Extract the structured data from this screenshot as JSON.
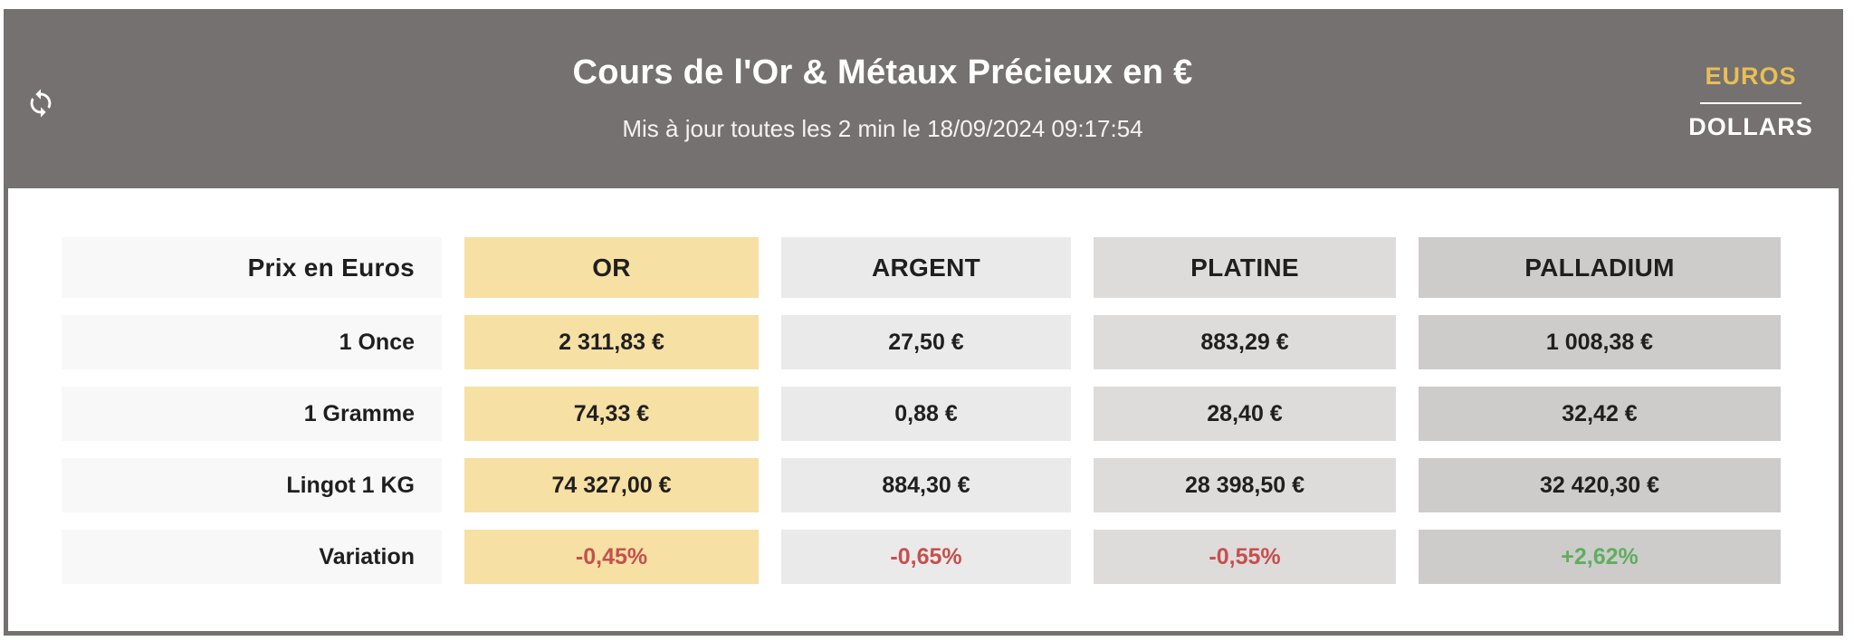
{
  "header": {
    "title": "Cours de l'Or & Métaux Précieux en €",
    "subtitle": "Mis à jour toutes les 2 min le 18/09/2024 09:17:54",
    "currency_toggle": {
      "options": [
        "EUROS",
        "DOLLARS"
      ],
      "selected": "EUROS"
    }
  },
  "table": {
    "corner_label": "Prix en Euros",
    "columns": [
      {
        "key": "or",
        "label": "OR",
        "color": "#F7E0A3"
      },
      {
        "key": "argent",
        "label": "ARGENT",
        "color": "#EBEAEA"
      },
      {
        "key": "platine",
        "label": "PLATINE",
        "color": "#DDDCDB"
      },
      {
        "key": "palladium",
        "label": "PALLADIUM",
        "color": "#CDCCCB"
      }
    ],
    "rows": [
      {
        "label": "1 Once",
        "values": [
          "2 311,83 €",
          "27,50 €",
          "883,29 €",
          "1 008,38 €"
        ]
      },
      {
        "label": "1 Gramme",
        "values": [
          "74,33 €",
          "0,88 €",
          "28,40 €",
          "32,42 €"
        ]
      },
      {
        "label": "Lingot 1 KG",
        "values": [
          "74 327,00 €",
          "884,30 €",
          "28 398,50 €",
          "32 420,30 €"
        ]
      },
      {
        "label": "Variation",
        "values": [
          "-0,45%",
          "-0,65%",
          "-0,55%",
          "+2,62%"
        ],
        "variation": true,
        "directions": [
          "down",
          "down",
          "down",
          "up"
        ]
      }
    ]
  },
  "colors": {
    "header_bg": "#757170",
    "border": "#757170",
    "label_cell_bg": "#F8F8F8",
    "euros_accent": "#E8BE55",
    "variation_down": "#C6504E",
    "variation_up": "#5FAE5F",
    "text_dark": "#1F1F1F",
    "subtitle_text": "#F4F3F2"
  }
}
